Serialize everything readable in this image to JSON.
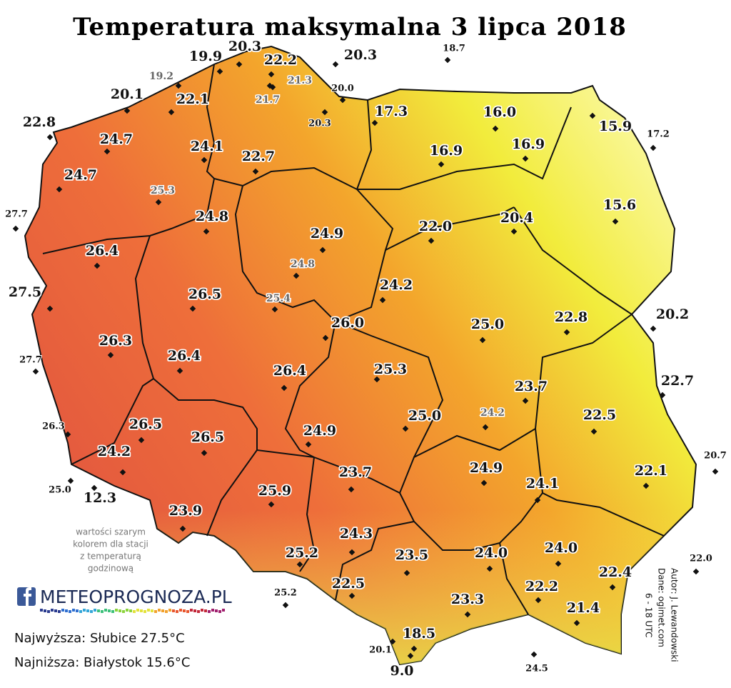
{
  "title": "Temperatura maksymalna 3 lipca 2018",
  "stations": [
    "19.9",
    "20.3",
    "22.2",
    "20.3",
    "18.7",
    "19.2",
    "21.3",
    "21.7",
    "20.0",
    "20.1",
    "22.1",
    "20.3",
    "17.3",
    "16.0",
    "15.9",
    "17.2",
    "22.8",
    "24.7",
    "24.1",
    "22.7",
    "16.9",
    "16.9",
    "24.7",
    "25.3",
    "27.7",
    "24.8",
    "15.6",
    "22.0",
    "20.4",
    "24.9",
    "26.4",
    "24.8",
    "27.5",
    "26.5",
    "25.4",
    "24.2",
    "20.2",
    "22.8",
    "26.0",
    "25.0",
    "26.3",
    "27.7",
    "26.4",
    "22.7",
    "25.3",
    "26.4",
    "23.7",
    "22.5",
    "24.2",
    "26.3",
    "25.0",
    "26.5",
    "26.5",
    "24.9",
    "20.7",
    "24.2",
    "22.1",
    "23.7",
    "24.9",
    "24.1",
    "25.0",
    "12.3",
    "25.9",
    "23.9",
    "24.3",
    "25.2",
    "23.5",
    "24.0",
    "24.0",
    "22.0",
    "22.4",
    "25.2",
    "22.5",
    "22.2",
    "23.3",
    "21.4",
    "18.5",
    "20.1",
    "9.0",
    "24.5"
  ],
  "note": [
    "wartości szarym",
    "kolorem dla stacji",
    "z temperaturą",
    "godzinową"
  ],
  "logo": "METEOPROGNOZA.PL",
  "summary": {
    "highest": "Najwyższa: Słubice 27.5°C",
    "lowest": "Najniższa: Białystok 15.6°C"
  },
  "credits": [
    "Autor: J. Lewandowski",
    "Dane: ogimet.com",
    "6 - 18 UTC"
  ]
}
